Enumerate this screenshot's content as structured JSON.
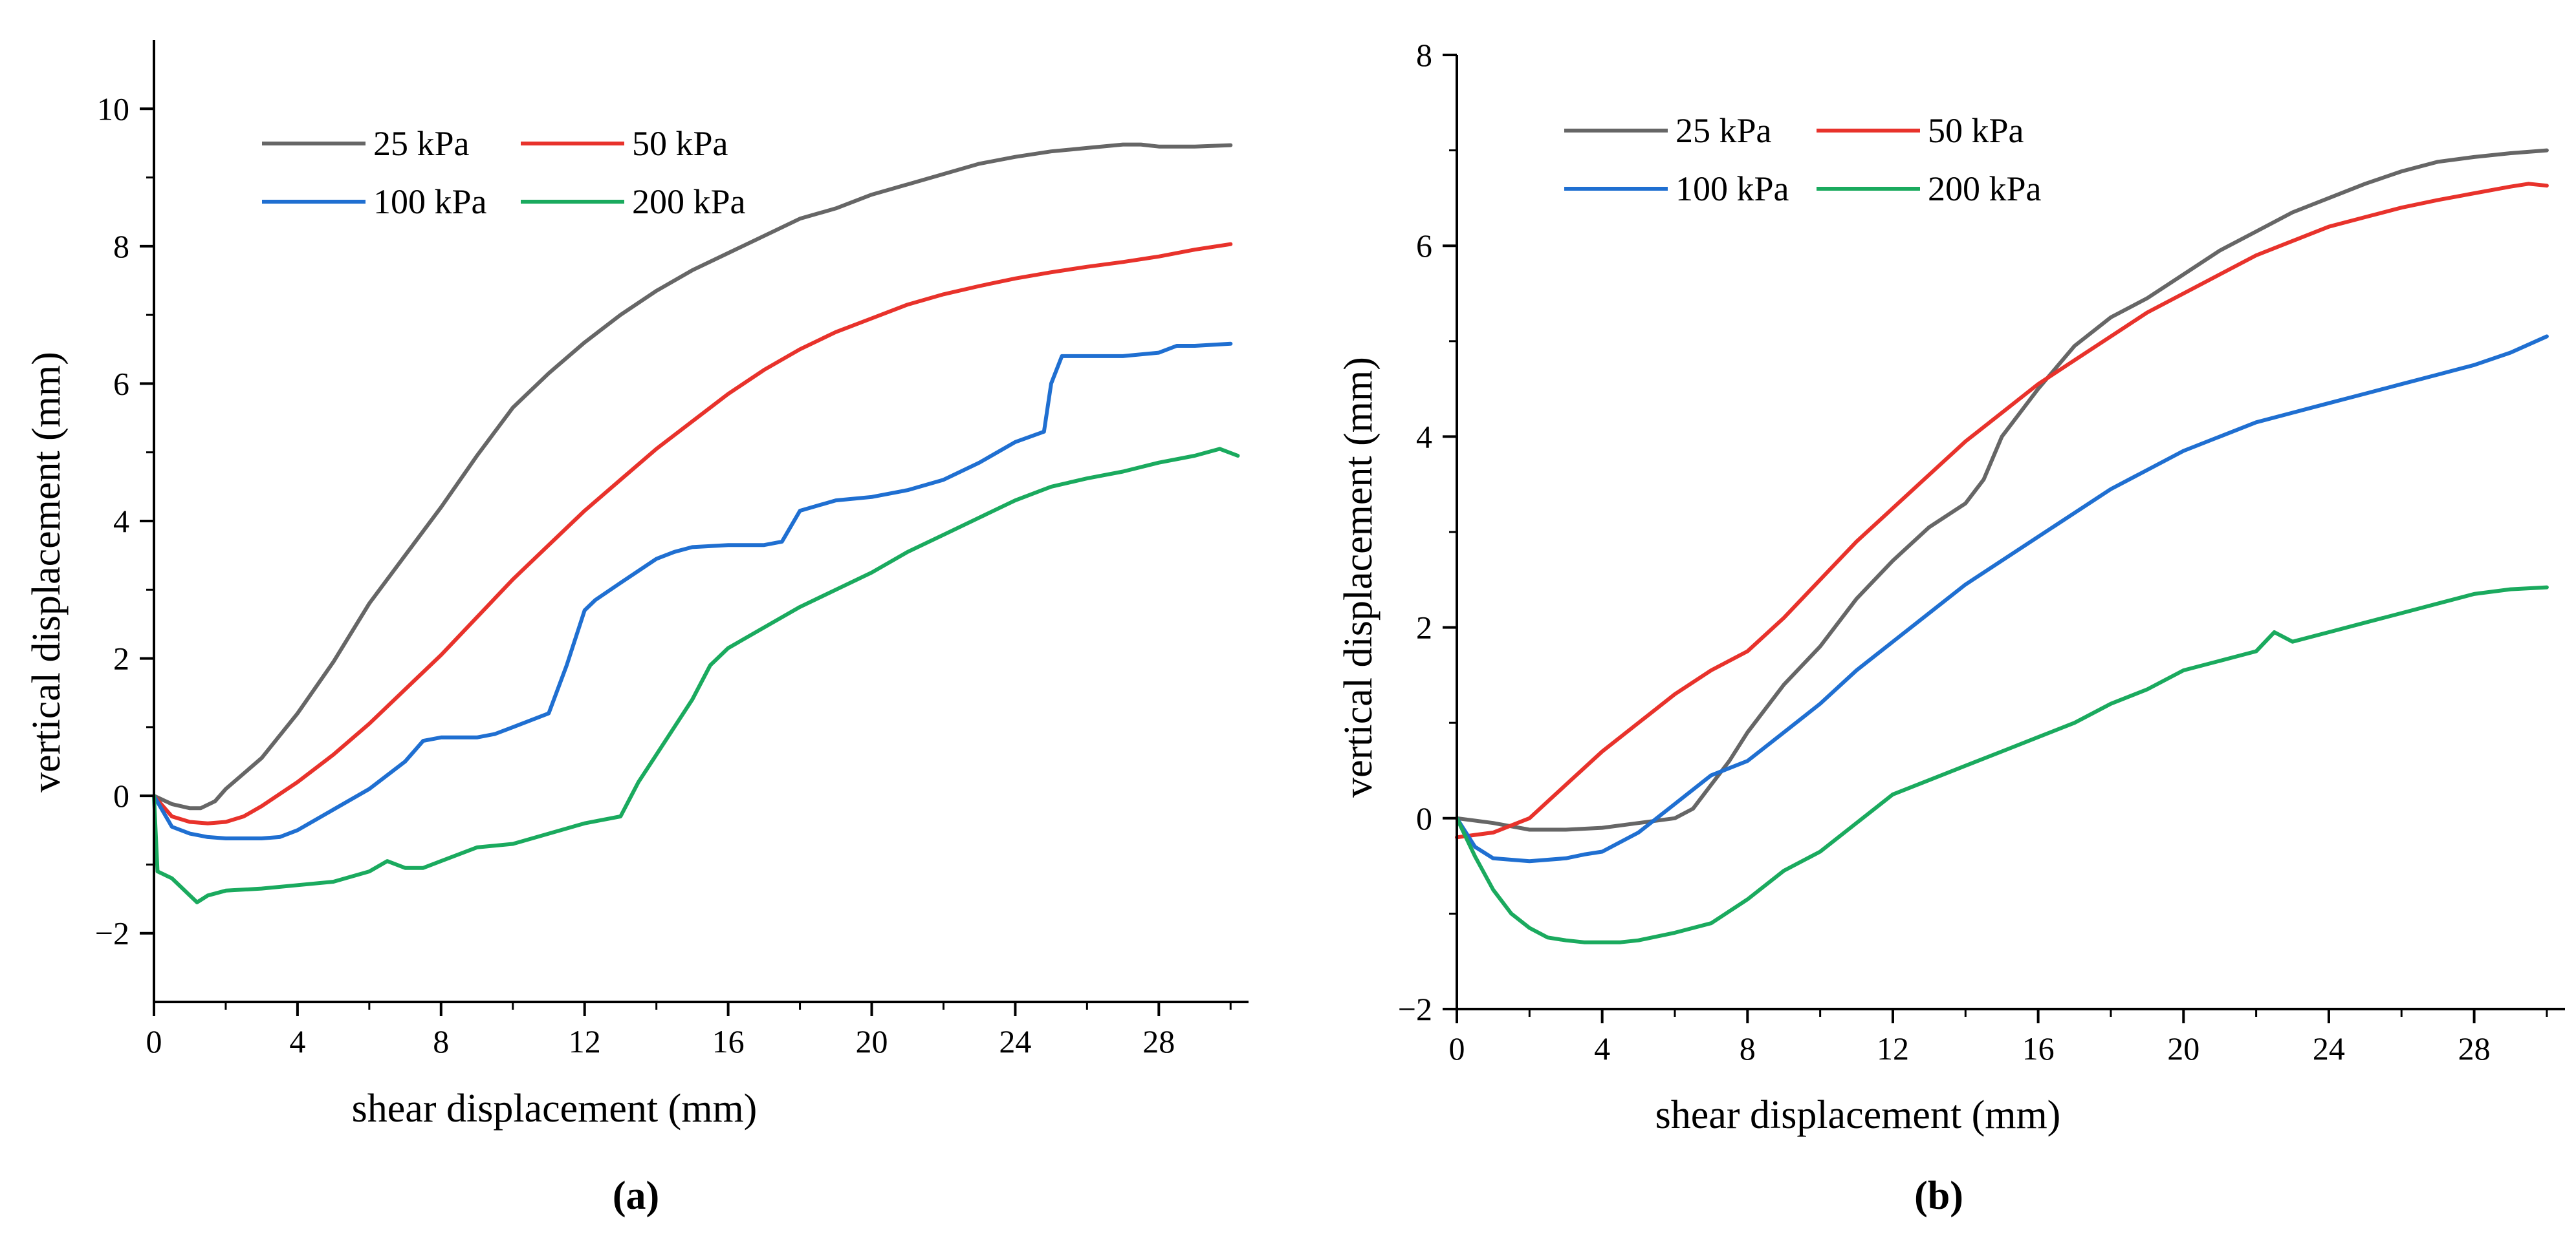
{
  "figure": {
    "panel_labels": [
      "(a)",
      "(b)"
    ]
  },
  "chart_data": [
    {
      "type": "line",
      "panel": "(a)",
      "title": "",
      "xlabel": "shear displacement (mm)",
      "ylabel": "vertical displacement (mm)",
      "xlim": [
        0,
        30.5
      ],
      "ylim": [
        -3,
        11
      ],
      "xticks": [
        0,
        4,
        8,
        12,
        16,
        20,
        24,
        28
      ],
      "yticks": [
        -2,
        0,
        2,
        4,
        6,
        8,
        10
      ],
      "legend": "top-left, two columns",
      "grid": false,
      "series": [
        {
          "name": "25 kPa",
          "color": "#666666",
          "x": [
            0,
            0.5,
            1,
            1.3,
            1.7,
            2,
            3,
            4,
            5,
            6,
            7,
            8,
            9,
            10,
            11,
            12,
            13,
            14,
            15,
            16,
            17,
            18,
            19,
            20,
            21,
            22,
            23,
            24,
            25,
            26,
            27,
            27.5,
            28,
            29,
            30
          ],
          "y": [
            0,
            -0.12,
            -0.18,
            -0.18,
            -0.08,
            0.1,
            0.55,
            1.2,
            1.95,
            2.8,
            3.5,
            4.2,
            4.95,
            5.65,
            6.15,
            6.6,
            7.0,
            7.35,
            7.65,
            7.9,
            8.15,
            8.4,
            8.55,
            8.75,
            8.9,
            9.05,
            9.2,
            9.3,
            9.38,
            9.43,
            9.48,
            9.48,
            9.45,
            9.45,
            9.47
          ]
        },
        {
          "name": "50 kPa",
          "color": "#e8322b",
          "x": [
            0,
            0.5,
            1,
            1.5,
            2,
            2.5,
            3,
            4,
            5,
            6,
            7,
            8,
            9,
            10,
            11,
            12,
            13,
            14,
            15,
            16,
            17,
            18,
            19,
            20,
            21,
            22,
            23,
            24,
            25,
            26,
            27,
            28,
            29,
            30
          ],
          "y": [
            0,
            -0.3,
            -0.38,
            -0.4,
            -0.38,
            -0.3,
            -0.15,
            0.2,
            0.6,
            1.05,
            1.55,
            2.05,
            2.6,
            3.15,
            3.65,
            4.15,
            4.6,
            5.05,
            5.45,
            5.85,
            6.2,
            6.5,
            6.75,
            6.95,
            7.15,
            7.3,
            7.42,
            7.53,
            7.62,
            7.7,
            7.77,
            7.85,
            7.95,
            8.03
          ]
        },
        {
          "name": "100 kPa",
          "color": "#1f6fd1",
          "x": [
            0,
            0.5,
            1,
            1.5,
            2,
            3,
            3.5,
            4,
            5,
            6,
            7,
            7.5,
            8,
            9,
            9.5,
            10,
            11,
            11.5,
            12,
            12.3,
            13,
            14,
            14.5,
            15,
            16,
            17,
            17.5,
            18,
            19,
            20,
            21,
            22,
            23,
            24,
            24.8,
            25,
            25.3,
            26,
            27,
            28,
            28.5,
            29,
            30
          ],
          "y": [
            0,
            -0.45,
            -0.55,
            -0.6,
            -0.62,
            -0.62,
            -0.6,
            -0.5,
            -0.2,
            0.1,
            0.5,
            0.8,
            0.85,
            0.85,
            0.9,
            1.0,
            1.2,
            1.9,
            2.7,
            2.85,
            3.1,
            3.45,
            3.55,
            3.62,
            3.65,
            3.65,
            3.7,
            4.15,
            4.3,
            4.35,
            4.45,
            4.6,
            4.85,
            5.15,
            5.3,
            6.0,
            6.4,
            6.4,
            6.4,
            6.45,
            6.55,
            6.55,
            6.58
          ]
        },
        {
          "name": "200 kPa",
          "color": "#1aaa5e",
          "x": [
            0,
            0.1,
            0.5,
            1,
            1.2,
            1.5,
            2,
            3,
            4,
            5,
            6,
            6.5,
            7,
            7.5,
            8,
            9,
            10,
            11,
            12,
            13,
            13.5,
            14,
            15,
            15.5,
            16,
            17,
            18,
            19,
            20,
            21,
            22,
            23,
            24,
            25,
            26,
            27,
            28,
            29,
            29.7,
            30.2
          ],
          "y": [
            0,
            -1.1,
            -1.2,
            -1.45,
            -1.55,
            -1.45,
            -1.38,
            -1.35,
            -1.3,
            -1.25,
            -1.1,
            -0.95,
            -1.05,
            -1.05,
            -0.95,
            -0.75,
            -0.7,
            -0.55,
            -0.4,
            -0.3,
            0.2,
            0.6,
            1.4,
            1.9,
            2.15,
            2.45,
            2.75,
            3.0,
            3.25,
            3.55,
            3.8,
            4.05,
            4.3,
            4.5,
            4.62,
            4.72,
            4.85,
            4.95,
            5.05,
            4.95
          ]
        }
      ]
    },
    {
      "type": "line",
      "panel": "(b)",
      "title": "",
      "xlabel": "shear displacement (mm)",
      "ylabel": "vertical displacement (mm)",
      "xlim": [
        0,
        30.5
      ],
      "ylim": [
        -2,
        8
      ],
      "xticks": [
        0,
        4,
        8,
        12,
        16,
        20,
        24,
        28
      ],
      "yticks": [
        -2,
        0,
        2,
        4,
        6,
        8
      ],
      "legend": "top-left, two columns",
      "grid": false,
      "series": [
        {
          "name": "25 kPa",
          "color": "#666666",
          "x": [
            0,
            1,
            2,
            3,
            4,
            5,
            6,
            6.5,
            7,
            7.5,
            8,
            9,
            10,
            11,
            12,
            13,
            14,
            14.5,
            15,
            16,
            17,
            18,
            19,
            20,
            21,
            22,
            23,
            24,
            25,
            26,
            27,
            28,
            29,
            30
          ],
          "y": [
            0,
            -0.05,
            -0.12,
            -0.12,
            -0.1,
            -0.05,
            0.0,
            0.1,
            0.35,
            0.6,
            0.9,
            1.4,
            1.8,
            2.3,
            2.7,
            3.05,
            3.3,
            3.55,
            4.0,
            4.5,
            4.95,
            5.25,
            5.45,
            5.7,
            5.95,
            6.15,
            6.35,
            6.5,
            6.65,
            6.78,
            6.88,
            6.93,
            6.97,
            7.0
          ]
        },
        {
          "name": "50 kPa",
          "color": "#e8322b",
          "x": [
            0,
            1,
            2,
            3,
            4,
            5,
            6,
            7,
            8,
            9,
            10,
            11,
            12,
            13,
            14,
            15,
            16,
            17,
            18,
            19,
            20,
            21,
            22,
            23,
            24,
            25,
            26,
            27,
            28,
            29,
            29.5,
            30
          ],
          "y": [
            -0.2,
            -0.15,
            0.0,
            0.35,
            0.7,
            1.0,
            1.3,
            1.55,
            1.75,
            2.1,
            2.5,
            2.9,
            3.25,
            3.6,
            3.95,
            4.25,
            4.55,
            4.8,
            5.05,
            5.3,
            5.5,
            5.7,
            5.9,
            6.05,
            6.2,
            6.3,
            6.4,
            6.48,
            6.55,
            6.62,
            6.65,
            6.63
          ]
        },
        {
          "name": "100 kPa",
          "color": "#1f6fd1",
          "x": [
            0,
            0.5,
            1,
            2,
            3,
            3.5,
            4,
            5,
            6,
            7,
            8,
            9,
            10,
            11,
            12,
            13,
            14,
            15,
            16,
            17,
            18,
            19,
            20,
            21,
            22,
            23,
            24,
            25,
            26,
            27,
            28,
            29,
            30
          ],
          "y": [
            0,
            -0.3,
            -0.42,
            -0.45,
            -0.42,
            -0.38,
            -0.35,
            -0.15,
            0.15,
            0.45,
            0.6,
            0.9,
            1.2,
            1.55,
            1.85,
            2.15,
            2.45,
            2.7,
            2.95,
            3.2,
            3.45,
            3.65,
            3.85,
            4.0,
            4.15,
            4.25,
            4.35,
            4.45,
            4.55,
            4.65,
            4.75,
            4.88,
            5.05
          ]
        },
        {
          "name": "200 kPa",
          "color": "#1aaa5e",
          "x": [
            0,
            0.5,
            1,
            1.5,
            2,
            2.5,
            3,
            3.5,
            4,
            4.5,
            5,
            6,
            7,
            8,
            9,
            10,
            11,
            12,
            13,
            14,
            15,
            16,
            17,
            18,
            19,
            20,
            21,
            22,
            22.5,
            23,
            24,
            25,
            26,
            27,
            28,
            29,
            30
          ],
          "y": [
            0,
            -0.4,
            -0.75,
            -1.0,
            -1.15,
            -1.25,
            -1.28,
            -1.3,
            -1.3,
            -1.3,
            -1.28,
            -1.2,
            -1.1,
            -0.85,
            -0.55,
            -0.35,
            -0.05,
            0.25,
            0.4,
            0.55,
            0.7,
            0.85,
            1.0,
            1.2,
            1.35,
            1.55,
            1.65,
            1.75,
            1.95,
            1.85,
            1.95,
            2.05,
            2.15,
            2.25,
            2.35,
            2.4,
            2.42
          ]
        }
      ]
    }
  ]
}
